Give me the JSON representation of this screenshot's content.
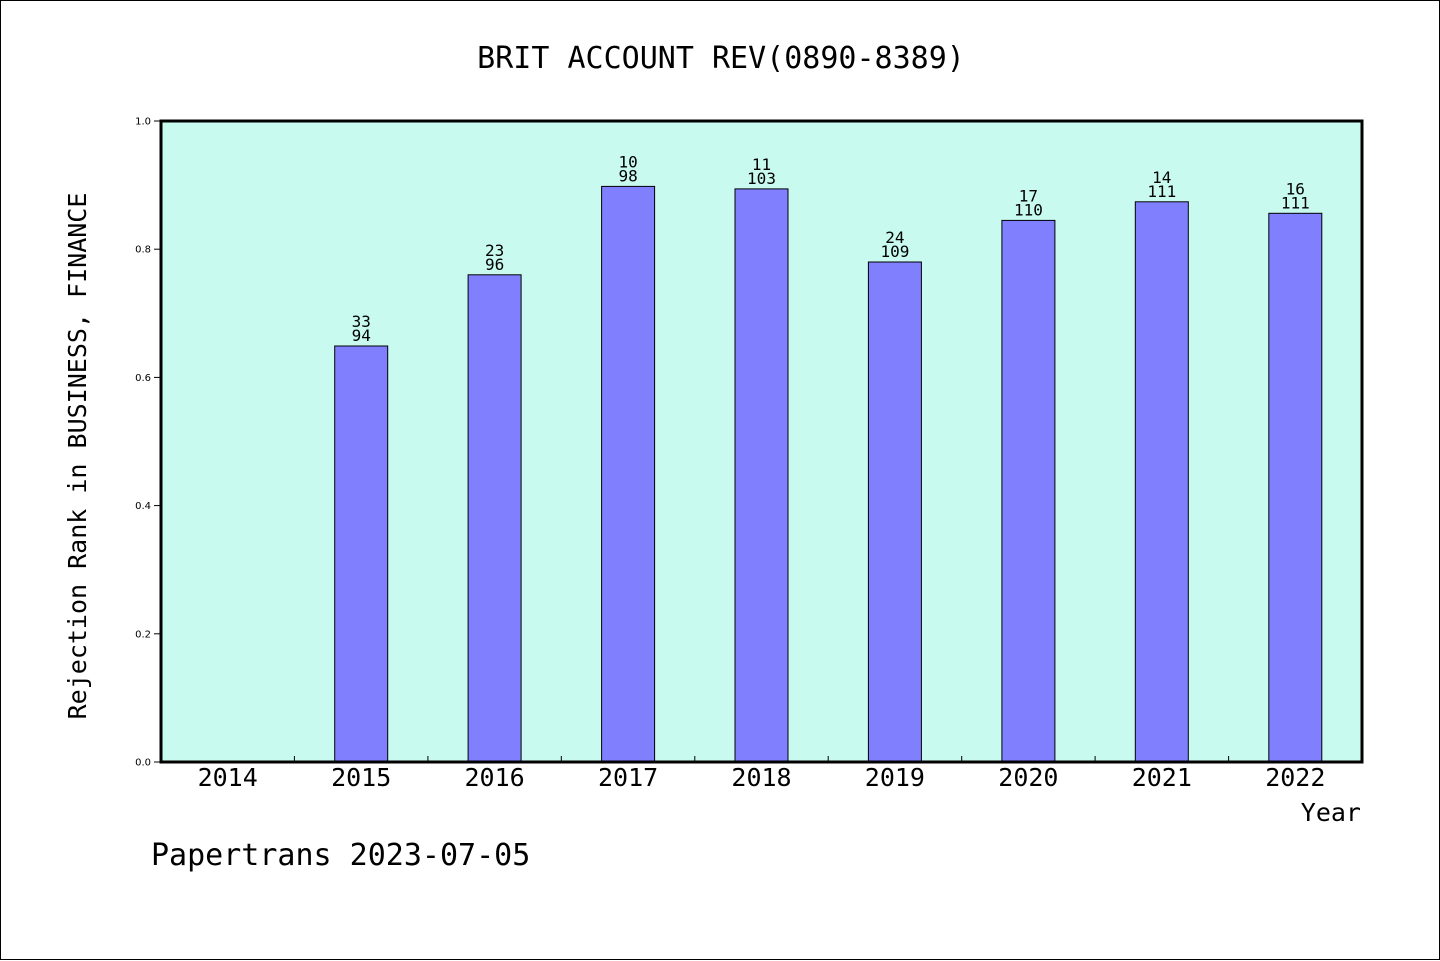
{
  "chart_data": {
    "type": "bar",
    "title": "BRIT ACCOUNT REV(0890-8389)",
    "xlabel": "Year",
    "ylabel": "Rejection Rank in BUSINESS, FINANCE",
    "categories": [
      "2014",
      "2015",
      "2016",
      "2017",
      "2018",
      "2019",
      "2020",
      "2021",
      "2022"
    ],
    "values": [
      null,
      0.649,
      0.76,
      0.898,
      0.894,
      0.78,
      0.845,
      0.874,
      0.856
    ],
    "data_labels": [
      [
        "",
        ""
      ],
      [
        "33",
        "94"
      ],
      [
        "23",
        "96"
      ],
      [
        "10",
        "98"
      ],
      [
        "11",
        "103"
      ],
      [
        "24",
        "109"
      ],
      [
        "17",
        "110"
      ],
      [
        "14",
        "111"
      ],
      [
        "16",
        "111"
      ]
    ],
    "ylim": [
      0,
      1.0
    ],
    "yticks": [
      "0.0",
      "0.2",
      "0.4",
      "0.6",
      "0.8",
      "1.0"
    ],
    "grid": false,
    "colors": {
      "plot_background": "#c8faf0",
      "bar_fill": "#8080ff",
      "bar_stroke": "#000000"
    }
  },
  "footer": "Papertrans 2023-07-05"
}
